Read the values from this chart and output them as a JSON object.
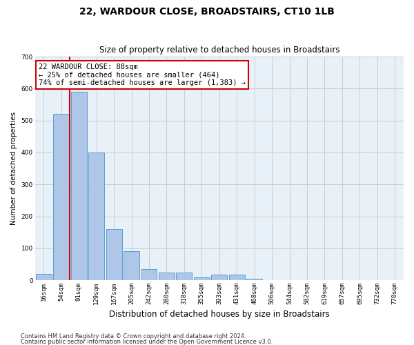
{
  "title": "22, WARDOUR CLOSE, BROADSTAIRS, CT10 1LB",
  "subtitle": "Size of property relative to detached houses in Broadstairs",
  "xlabel": "Distribution of detached houses by size in Broadstairs",
  "ylabel": "Number of detached properties",
  "bar_labels": [
    "16sqm",
    "54sqm",
    "91sqm",
    "129sqm",
    "167sqm",
    "205sqm",
    "242sqm",
    "280sqm",
    "318sqm",
    "355sqm",
    "393sqm",
    "431sqm",
    "468sqm",
    "506sqm",
    "544sqm",
    "582sqm",
    "619sqm",
    "657sqm",
    "695sqm",
    "732sqm",
    "770sqm"
  ],
  "bar_values": [
    20,
    520,
    590,
    400,
    160,
    90,
    35,
    25,
    25,
    10,
    18,
    18,
    5,
    0,
    0,
    0,
    0,
    0,
    0,
    0,
    0
  ],
  "bar_color": "#aec6e8",
  "bar_edge_color": "#5a9fd4",
  "annotation_line": "22 WARDOUR CLOSE: 88sqm",
  "annotation_line2": "← 25% of detached houses are smaller (464)",
  "annotation_line3": "74% of semi-detached houses are larger (1,383) →",
  "annotation_box_color": "#ffffff",
  "annotation_border_color": "#cc0000",
  "property_line_color": "#cc0000",
  "property_line_x": 1.5,
  "ylim": [
    0,
    700
  ],
  "yticks": [
    0,
    100,
    200,
    300,
    400,
    500,
    600,
    700
  ],
  "footer1": "Contains HM Land Registry data © Crown copyright and database right 2024.",
  "footer2": "Contains public sector information licensed under the Open Government Licence v3.0.",
  "background_color": "#ffffff",
  "plot_bg_color": "#e8f0f8",
  "grid_color": "#cccccc",
  "title_fontsize": 10,
  "subtitle_fontsize": 8.5,
  "xlabel_fontsize": 8.5,
  "ylabel_fontsize": 7.5,
  "tick_fontsize": 6.5,
  "annot_fontsize": 7.5,
  "footer_fontsize": 6
}
